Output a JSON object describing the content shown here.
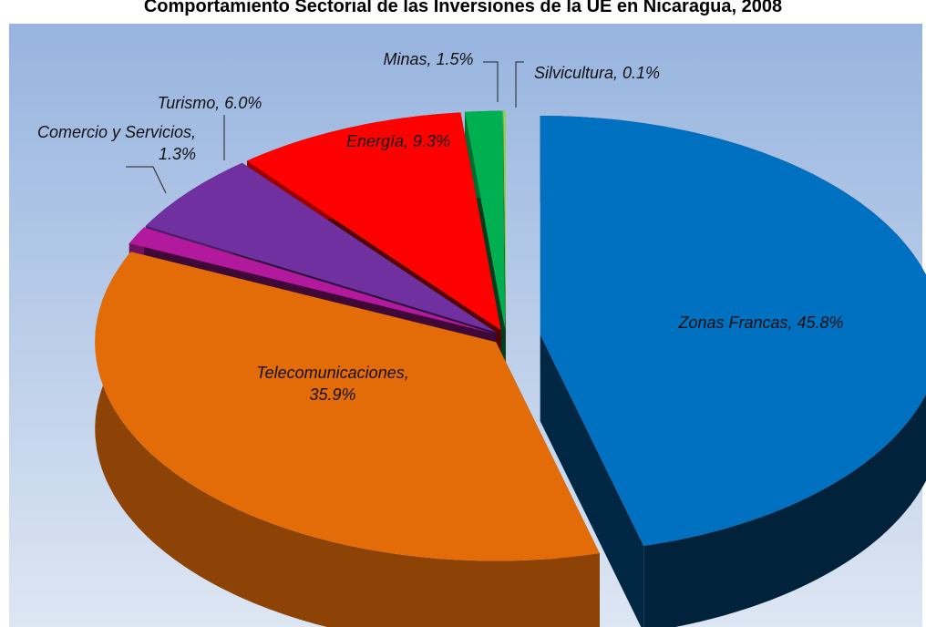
{
  "chart_data": {
    "type": "pie3d",
    "title": "Comportamiento Sectorial de las Inversiones de la UE en Nicaragua, 2008",
    "values": [
      45.8,
      35.9,
      1.3,
      6.0,
      9.3,
      1.5,
      0.1
    ],
    "value_labels": [
      "Zonas Francas, 45.8%",
      "Telecomunicaciones, 35.9%",
      "Comercio y Servicios, 1.3%",
      "Turismo, 6.0%",
      "Energía, 9.3%",
      "Minas, 1.5%",
      "Silvicultura, 0.1%"
    ],
    "colors": [
      "#0070c0",
      "#e36c09",
      "#b3199c",
      "#7030a0",
      "#ff0000",
      "#00b050",
      "#92d050"
    ]
  }
}
